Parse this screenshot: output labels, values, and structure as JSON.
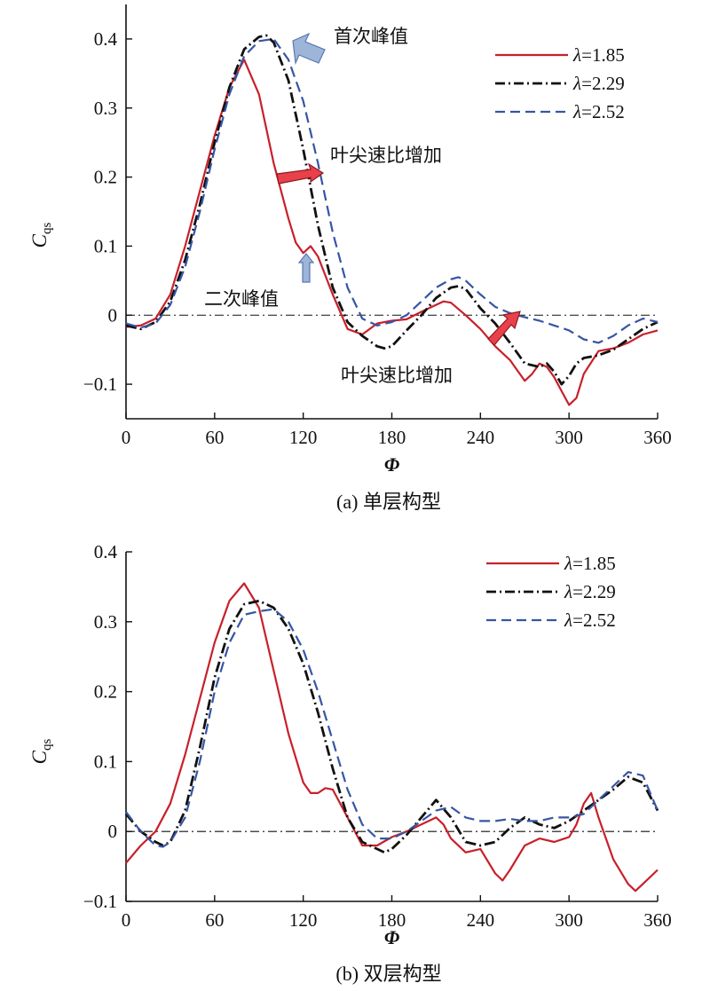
{
  "chart_data": [
    {
      "type": "line",
      "caption": "(a) 单层构型",
      "xlabel": "Φ",
      "ylabel": "C",
      "ylabel_sub": "qs",
      "xlim": [
        0,
        360
      ],
      "ylim": [
        -0.15,
        0.45
      ],
      "xticks": [
        0,
        60,
        120,
        180,
        240,
        300,
        360
      ],
      "xtick_labels": [
        "0",
        "60",
        "120",
        "180",
        "240",
        "300",
        "360"
      ],
      "yticks": [
        -0.1,
        0,
        0.1,
        0.2,
        0.3,
        0.4
      ],
      "ytick_labels": [
        "−0.1",
        "0",
        "0.1",
        "0.2",
        "0.3",
        "0.4"
      ],
      "grid": false,
      "legend_position": "top-right",
      "reference_line": 0,
      "series": [
        {
          "name": "λ=1.85",
          "color": "#c8202a",
          "dash": "solid",
          "x": [
            0,
            10,
            20,
            30,
            40,
            50,
            60,
            70,
            80,
            90,
            100,
            110,
            115,
            120,
            125,
            130,
            140,
            150,
            160,
            170,
            180,
            190,
            200,
            210,
            215,
            220,
            230,
            240,
            250,
            260,
            265,
            270,
            275,
            280,
            285,
            290,
            295,
            300,
            305,
            310,
            320,
            330,
            340,
            350,
            360
          ],
          "y": [
            -0.017,
            -0.015,
            -0.005,
            0.03,
            0.1,
            0.18,
            0.26,
            0.33,
            0.37,
            0.32,
            0.22,
            0.14,
            0.105,
            0.09,
            0.1,
            0.085,
            0.03,
            -0.02,
            -0.028,
            -0.012,
            -0.008,
            -0.006,
            0.005,
            0.015,
            0.02,
            0.018,
            0.0,
            -0.02,
            -0.045,
            -0.065,
            -0.08,
            -0.095,
            -0.085,
            -0.07,
            -0.075,
            -0.09,
            -0.11,
            -0.13,
            -0.12,
            -0.085,
            -0.052,
            -0.048,
            -0.04,
            -0.028,
            -0.022
          ]
        },
        {
          "name": "λ=2.29",
          "color": "#111111",
          "dash": "dashdot",
          "x": [
            0,
            10,
            20,
            30,
            40,
            50,
            60,
            70,
            80,
            90,
            95,
            100,
            110,
            120,
            130,
            140,
            150,
            160,
            170,
            175,
            180,
            190,
            200,
            210,
            220,
            225,
            230,
            240,
            250,
            260,
            270,
            280,
            285,
            290,
            295,
            300,
            305,
            310,
            320,
            330,
            340,
            350,
            360
          ],
          "y": [
            -0.015,
            -0.02,
            -0.01,
            0.02,
            0.08,
            0.16,
            0.25,
            0.33,
            0.385,
            0.403,
            0.405,
            0.395,
            0.34,
            0.24,
            0.13,
            0.04,
            -0.01,
            -0.03,
            -0.045,
            -0.048,
            -0.045,
            -0.022,
            0.0,
            0.025,
            0.04,
            0.042,
            0.038,
            0.01,
            -0.012,
            -0.04,
            -0.07,
            -0.075,
            -0.07,
            -0.082,
            -0.1,
            -0.088,
            -0.07,
            -0.062,
            -0.058,
            -0.05,
            -0.035,
            -0.02,
            -0.01
          ]
        },
        {
          "name": "λ=2.52",
          "color": "#3655a5",
          "dash": "dashed",
          "x": [
            0,
            10,
            20,
            30,
            40,
            50,
            60,
            70,
            80,
            90,
            100,
            110,
            120,
            130,
            140,
            150,
            160,
            170,
            180,
            190,
            200,
            210,
            220,
            225,
            230,
            240,
            250,
            260,
            270,
            280,
            290,
            300,
            310,
            320,
            330,
            340,
            350,
            360
          ],
          "y": [
            -0.012,
            -0.018,
            -0.012,
            0.015,
            0.07,
            0.15,
            0.24,
            0.32,
            0.375,
            0.397,
            0.4,
            0.37,
            0.31,
            0.22,
            0.12,
            0.04,
            -0.005,
            -0.015,
            -0.01,
            0.0,
            0.02,
            0.04,
            0.052,
            0.055,
            0.05,
            0.03,
            0.012,
            0.003,
            -0.003,
            -0.008,
            -0.015,
            -0.022,
            -0.035,
            -0.04,
            -0.03,
            -0.015,
            -0.005,
            -0.01
          ]
        }
      ],
      "annotations": [
        {
          "text": "首次峰值",
          "x": 142,
          "y": 0.4
        },
        {
          "text": "叶尖速比增加",
          "x": 138,
          "y": 0.22
        },
        {
          "text": "二次峰值",
          "x": 52,
          "y": 0.025
        },
        {
          "text": "叶尖速比增加",
          "x": 142,
          "y": -0.085
        }
      ]
    },
    {
      "type": "line",
      "caption": "(b) 双层构型",
      "xlabel": "Φ",
      "ylabel": "C",
      "ylabel_sub": "qs",
      "xlim": [
        0,
        360
      ],
      "ylim": [
        -0.1,
        0.4
      ],
      "xticks": [
        0,
        60,
        120,
        180,
        240,
        300,
        360
      ],
      "xtick_labels": [
        "0",
        "60",
        "120",
        "180",
        "240",
        "300",
        "360"
      ],
      "yticks": [
        -0.1,
        0,
        0.1,
        0.2,
        0.3,
        0.4
      ],
      "ytick_labels": [
        "−0.1",
        "0",
        "0.1",
        "0.2",
        "0.3",
        "0.4"
      ],
      "grid": false,
      "legend_position": "top-right",
      "reference_line": 0,
      "series": [
        {
          "name": "λ=1.85",
          "color": "#c8202a",
          "dash": "solid",
          "x": [
            0,
            10,
            20,
            30,
            40,
            50,
            60,
            70,
            80,
            90,
            100,
            110,
            120,
            125,
            130,
            135,
            140,
            150,
            160,
            170,
            180,
            190,
            200,
            210,
            215,
            220,
            230,
            240,
            250,
            255,
            260,
            270,
            280,
            290,
            300,
            305,
            310,
            315,
            320,
            330,
            340,
            345,
            350,
            360
          ],
          "y": [
            -0.045,
            -0.02,
            0.0,
            0.04,
            0.11,
            0.19,
            0.27,
            0.33,
            0.355,
            0.32,
            0.23,
            0.14,
            0.07,
            0.055,
            0.055,
            0.062,
            0.06,
            0.02,
            -0.02,
            -0.02,
            -0.008,
            0.0,
            0.01,
            0.02,
            0.01,
            -0.01,
            -0.03,
            -0.025,
            -0.06,
            -0.07,
            -0.055,
            -0.02,
            -0.01,
            -0.015,
            -0.008,
            0.01,
            0.04,
            0.055,
            0.02,
            -0.04,
            -0.075,
            -0.085,
            -0.075,
            -0.055
          ]
        },
        {
          "name": "λ=2.29",
          "color": "#111111",
          "dash": "dashdot",
          "x": [
            0,
            10,
            20,
            25,
            30,
            40,
            50,
            60,
            70,
            80,
            90,
            100,
            110,
            120,
            130,
            140,
            150,
            160,
            170,
            175,
            180,
            190,
            200,
            210,
            220,
            230,
            240,
            250,
            260,
            270,
            280,
            290,
            300,
            310,
            320,
            330,
            340,
            350,
            360
          ],
          "y": [
            0.025,
            0.0,
            -0.015,
            -0.02,
            -0.015,
            0.03,
            0.12,
            0.22,
            0.29,
            0.325,
            0.33,
            0.32,
            0.29,
            0.24,
            0.17,
            0.09,
            0.02,
            -0.015,
            -0.025,
            -0.03,
            -0.025,
            -0.005,
            0.02,
            0.045,
            0.02,
            -0.015,
            -0.02,
            -0.015,
            0.005,
            0.02,
            0.01,
            0.005,
            0.015,
            0.03,
            0.045,
            0.06,
            0.078,
            0.07,
            0.03
          ]
        },
        {
          "name": "λ=2.52",
          "color": "#3655a5",
          "dash": "dashed",
          "x": [
            0,
            10,
            20,
            25,
            30,
            40,
            50,
            60,
            70,
            80,
            90,
            100,
            110,
            120,
            130,
            140,
            150,
            160,
            170,
            180,
            190,
            200,
            210,
            220,
            230,
            240,
            250,
            260,
            270,
            280,
            290,
            300,
            310,
            320,
            330,
            340,
            350,
            360
          ],
          "y": [
            0.028,
            0.0,
            -0.02,
            -0.022,
            -0.015,
            0.02,
            0.1,
            0.2,
            0.27,
            0.31,
            0.315,
            0.318,
            0.3,
            0.26,
            0.2,
            0.13,
            0.06,
            0.01,
            -0.01,
            -0.01,
            0.0,
            0.015,
            0.03,
            0.035,
            0.02,
            0.015,
            0.015,
            0.018,
            0.015,
            0.015,
            0.02,
            0.02,
            0.025,
            0.045,
            0.065,
            0.085,
            0.08,
            0.03
          ]
        }
      ]
    }
  ]
}
